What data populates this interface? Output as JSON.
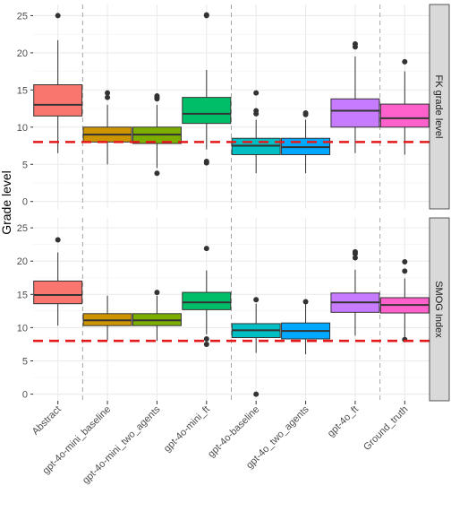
{
  "chart_data": {
    "type": "boxplot",
    "ylabel": "Grade level",
    "categories": [
      "Abstract",
      "gpt-4o-mini_baseline",
      "gpt-4o-mini_two_agents",
      "gpt-4o-mini_ft",
      "gpt-4o-baseline",
      "gpt-4o_two_agents",
      "gpt-4o_ft",
      "Ground_truth"
    ],
    "colors": [
      "#F8766D",
      "#CD9600",
      "#7CAE00",
      "#00BE67",
      "#00BFC4",
      "#00A9FF",
      "#C77CFF",
      "#FF61CC"
    ],
    "ylim": [
      -1,
      26.5
    ],
    "yticks": [
      0,
      5,
      10,
      15,
      20,
      25
    ],
    "reference_line": {
      "y": 8,
      "color": "#e31a1c",
      "style": "dashed"
    },
    "group_separators_after": [
      "Abstract",
      "gpt-4o-mini_ft",
      "gpt-4o_ft"
    ],
    "panels": [
      {
        "label": "FK grade level",
        "boxes": [
          {
            "min": 6.5,
            "q1": 11.5,
            "median": 13.0,
            "q3": 15.7,
            "max": 21.7,
            "outliers": [
              25.0
            ]
          },
          {
            "min": 5.0,
            "q1": 8.0,
            "median": 9.0,
            "q3": 10.0,
            "max": 13.0,
            "outliers": [
              14.0,
              14.6
            ]
          },
          {
            "min": 4.5,
            "q1": 7.8,
            "median": 9.0,
            "q3": 10.0,
            "max": 13.0,
            "outliers": [
              13.8,
              14.0,
              14.2,
              3.8
            ]
          },
          {
            "min": 7.0,
            "q1": 10.5,
            "median": 11.8,
            "q3": 14.0,
            "max": 17.7,
            "outliers": [
              25.0,
              25.1,
              5.4,
              5.2
            ]
          },
          {
            "min": 3.8,
            "q1": 6.3,
            "median": 7.5,
            "q3": 8.5,
            "max": 11.0,
            "outliers": [
              11.8,
              12.2,
              14.6
            ]
          },
          {
            "min": 3.8,
            "q1": 6.3,
            "median": 7.3,
            "q3": 8.5,
            "max": 11.0,
            "outliers": [
              11.7,
              11.9
            ]
          },
          {
            "min": 6.5,
            "q1": 10.0,
            "median": 12.2,
            "q3": 13.8,
            "max": 19.5,
            "outliers": [
              20.8,
              21.2
            ]
          },
          {
            "min": 6.3,
            "q1": 10.0,
            "median": 11.2,
            "q3": 13.1,
            "max": 17.5,
            "outliers": [
              18.8
            ]
          }
        ]
      },
      {
        "label": "SMOG Index",
        "boxes": [
          {
            "min": 10.3,
            "q1": 13.6,
            "median": 14.9,
            "q3": 17.0,
            "max": 21.3,
            "outliers": [
              23.2
            ]
          },
          {
            "min": 8.1,
            "q1": 10.3,
            "median": 11.1,
            "q3": 12.1,
            "max": 14.8,
            "outliers": []
          },
          {
            "min": 8.0,
            "q1": 10.3,
            "median": 11.1,
            "q3": 12.1,
            "max": 14.8,
            "outliers": [
              15.3
            ]
          },
          {
            "min": 9.0,
            "q1": 12.7,
            "median": 13.8,
            "q3": 15.3,
            "max": 18.6,
            "outliers": [
              21.9,
              8.3,
              7.5
            ]
          },
          {
            "min": 6.2,
            "q1": 8.5,
            "median": 9.6,
            "q3": 10.6,
            "max": 13.6,
            "outliers": [
              14.2,
              0.0
            ]
          },
          {
            "min": 6.0,
            "q1": 8.3,
            "median": 9.5,
            "q3": 10.7,
            "max": 13.5,
            "outliers": [
              13.9
            ]
          },
          {
            "min": 8.8,
            "q1": 12.3,
            "median": 13.8,
            "q3": 15.2,
            "max": 18.7,
            "outliers": [
              20.5,
              21.1,
              21.4
            ]
          },
          {
            "min": 8.3,
            "q1": 12.2,
            "median": 13.4,
            "q3": 14.5,
            "max": 17.4,
            "outliers": [
              18.5,
              19.9,
              8.2
            ]
          }
        ]
      }
    ]
  }
}
